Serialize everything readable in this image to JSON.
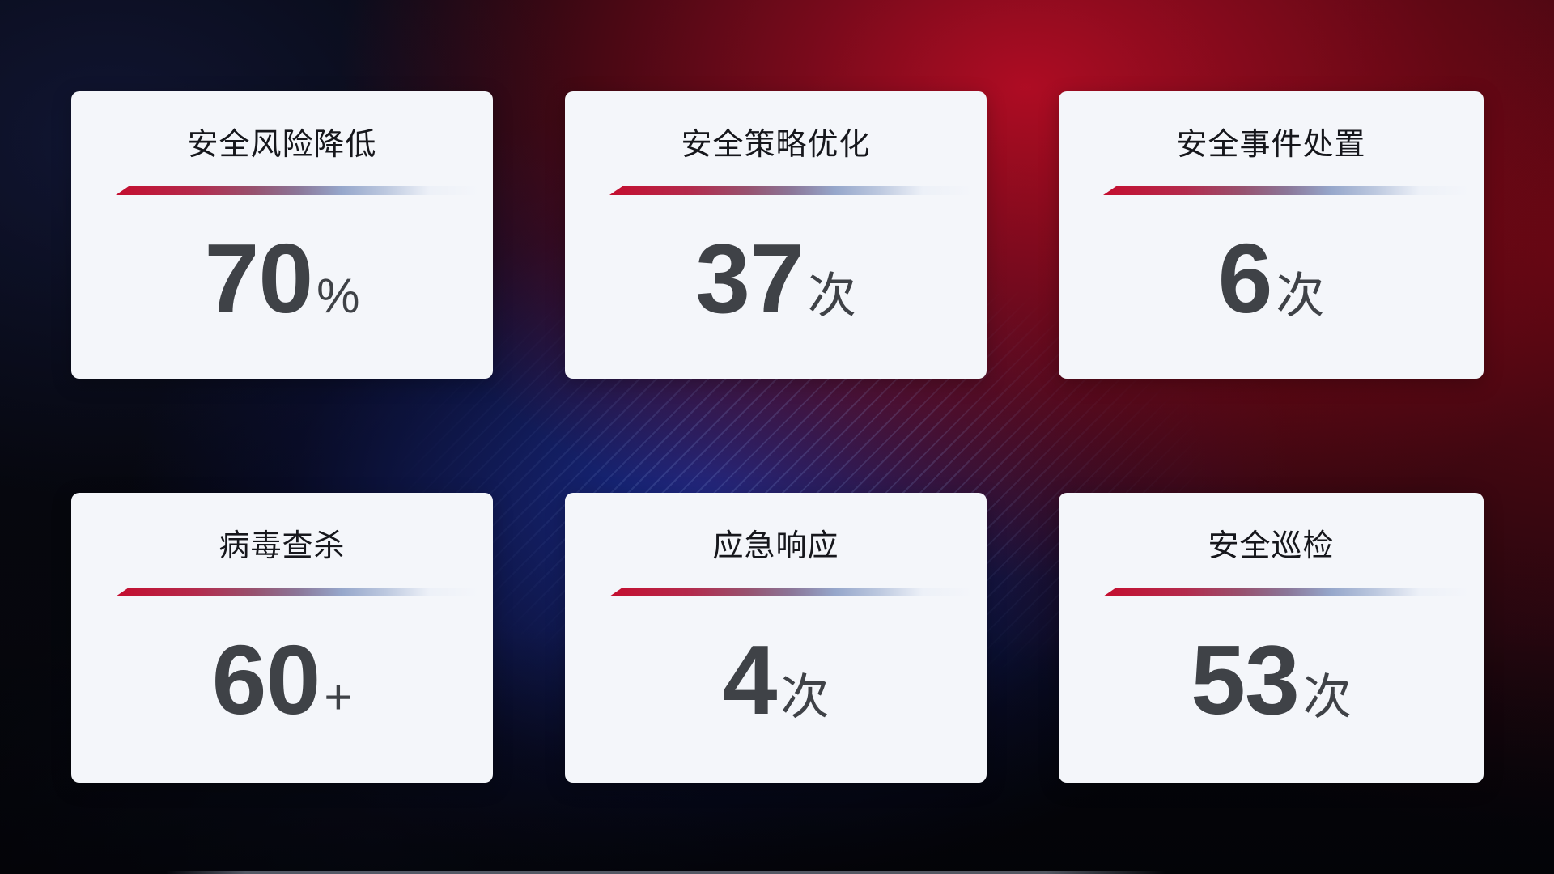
{
  "dashboard": {
    "cards": [
      {
        "title": "安全风险降低",
        "value": "70",
        "unit": "%"
      },
      {
        "title": "安全策略优化",
        "value": "37",
        "unit": "次"
      },
      {
        "title": "安全事件处置",
        "value": "6",
        "unit": "次"
      },
      {
        "title": "病毒查杀",
        "value": "60",
        "unit": "+"
      },
      {
        "title": "应急响应",
        "value": "4",
        "unit": "次"
      },
      {
        "title": "安全巡检",
        "value": "53",
        "unit": "次"
      }
    ],
    "colors": {
      "accent_red": "#c40e2f",
      "accent_blue_fade": "#bcc8df",
      "card_background": "#f4f6fa",
      "title_text": "#16171c",
      "number_text": "#3f4247",
      "background_red_glow": "#ba0d25",
      "background_blue_glow": "#1b2d94",
      "background_base": "#05060b"
    }
  }
}
